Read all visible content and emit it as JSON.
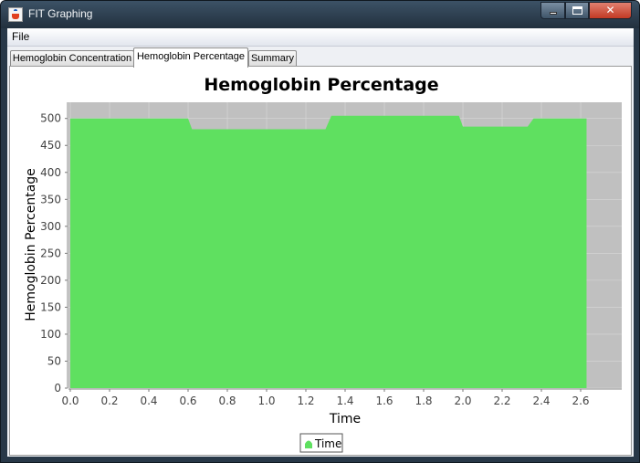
{
  "window": {
    "title": "FIT Graphing",
    "controls": {
      "minimize_icon": "minimize-icon",
      "maximize_icon": "maximize-icon",
      "close_icon": "close-icon",
      "close_glyph": "✕"
    }
  },
  "menubar": {
    "items": [
      {
        "label": "File"
      }
    ]
  },
  "tabs": [
    {
      "label": "Hemoglobin Concentration",
      "active": false
    },
    {
      "label": "Hemoglobin Percentage",
      "active": true
    },
    {
      "label": "Summary",
      "active": false
    }
  ],
  "colors": {
    "area_fill": "#5fe060",
    "plot_background": "#c0c0c0",
    "gridline": "#d8d8d8"
  },
  "chart_data": {
    "type": "area",
    "title": "Hemoglobin Percentage",
    "xlabel": "Time",
    "ylabel": "Hemoglobin Percentage",
    "xlim": [
      0.0,
      2.8
    ],
    "ylim": [
      0,
      530
    ],
    "x_ticks": [
      "0.0",
      "0.2",
      "0.4",
      "0.6",
      "0.8",
      "1.0",
      "1.2",
      "1.4",
      "1.6",
      "1.8",
      "2.0",
      "2.2",
      "2.4",
      "2.6"
    ],
    "y_ticks": [
      "0",
      "50",
      "100",
      "150",
      "200",
      "250",
      "300",
      "350",
      "400",
      "450",
      "500"
    ],
    "grid": true,
    "legend": {
      "placement": "bottom-center",
      "entries": [
        "Time"
      ]
    },
    "series": [
      {
        "name": "Time",
        "x": [
          0.0,
          0.6,
          0.62,
          1.3,
          1.33,
          1.98,
          2.0,
          2.33,
          2.36,
          2.63
        ],
        "y": [
          500,
          500,
          480,
          480,
          505,
          505,
          485,
          485,
          500,
          500
        ]
      }
    ]
  }
}
